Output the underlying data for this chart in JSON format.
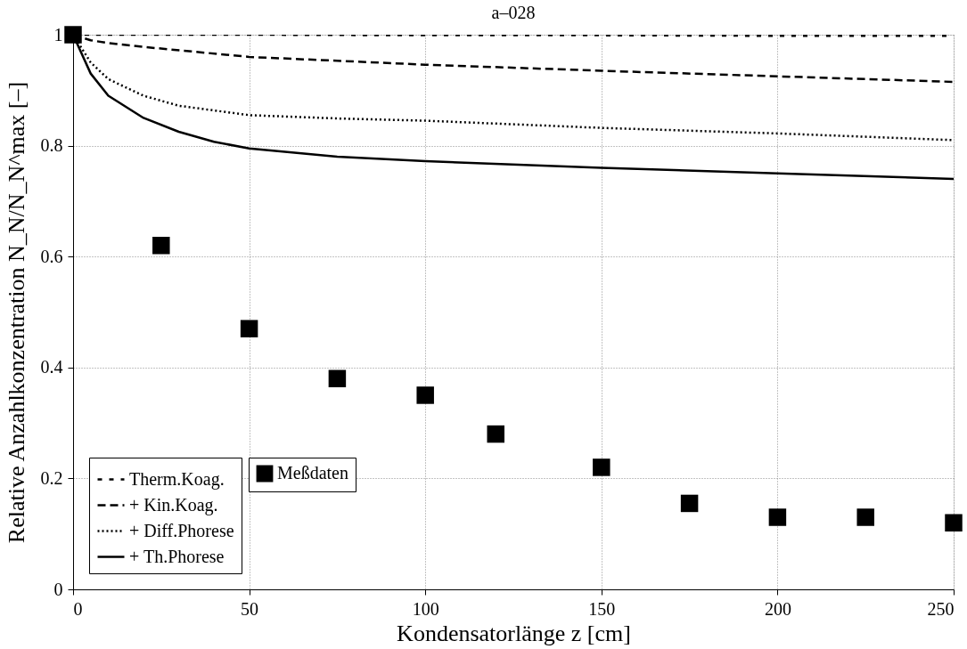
{
  "chart_data": {
    "type": "line",
    "title": "a–028",
    "xlabel": "Kondensatorlänge z [cm]",
    "ylabel": "Relative Anzahlkonzentration N_N/N_N^max [–]",
    "xlim": [
      0,
      250
    ],
    "ylim": [
      0,
      1
    ],
    "xticks": [
      0,
      50,
      100,
      150,
      200,
      250
    ],
    "yticks": [
      0,
      0.2,
      0.4,
      0.6,
      0.8,
      1
    ],
    "grid": true,
    "legend": "bottom left",
    "series": [
      {
        "name": "Therm.Koag.",
        "color": "#000000",
        "line_style": "dashed",
        "x": [
          0,
          50,
          100,
          150,
          200,
          250
        ],
        "values": [
          1,
          1,
          0.999,
          0.999,
          0.998,
          0.998
        ]
      },
      {
        "name": "+ Kin.Koag.",
        "color": "#000000",
        "line_style": "dashed",
        "x": [
          0,
          5,
          10,
          20,
          50,
          100,
          150,
          200,
          250
        ],
        "values": [
          1,
          0.99,
          0.985,
          0.978,
          0.96,
          0.946,
          0.935,
          0.925,
          0.915
        ]
      },
      {
        "name": "+ Diff.Phorese",
        "color": "#000000",
        "line_style": "dotted",
        "x": [
          0,
          5,
          10,
          20,
          30,
          50,
          75,
          100,
          150,
          200,
          250
        ],
        "values": [
          1,
          0.95,
          0.92,
          0.89,
          0.872,
          0.855,
          0.849,
          0.845,
          0.832,
          0.822,
          0.81
        ]
      },
      {
        "name": "+ Th.Phorese",
        "color": "#000000",
        "line_style": "solid",
        "x": [
          0,
          5,
          10,
          20,
          30,
          40,
          50,
          75,
          100,
          150,
          200,
          250
        ],
        "values": [
          1,
          0.93,
          0.89,
          0.85,
          0.825,
          0.807,
          0.795,
          0.78,
          0.772,
          0.76,
          0.75,
          0.74
        ]
      },
      {
        "name": "Meßdaten",
        "color": "#000000",
        "type": "scatter",
        "marker": "square",
        "x": [
          0,
          25,
          50,
          75,
          100,
          120,
          150,
          175,
          200,
          225,
          250
        ],
        "values": [
          1,
          0.62,
          0.47,
          0.38,
          0.35,
          0.28,
          0.22,
          0.155,
          0.13,
          0.13,
          0.12
        ]
      }
    ]
  }
}
